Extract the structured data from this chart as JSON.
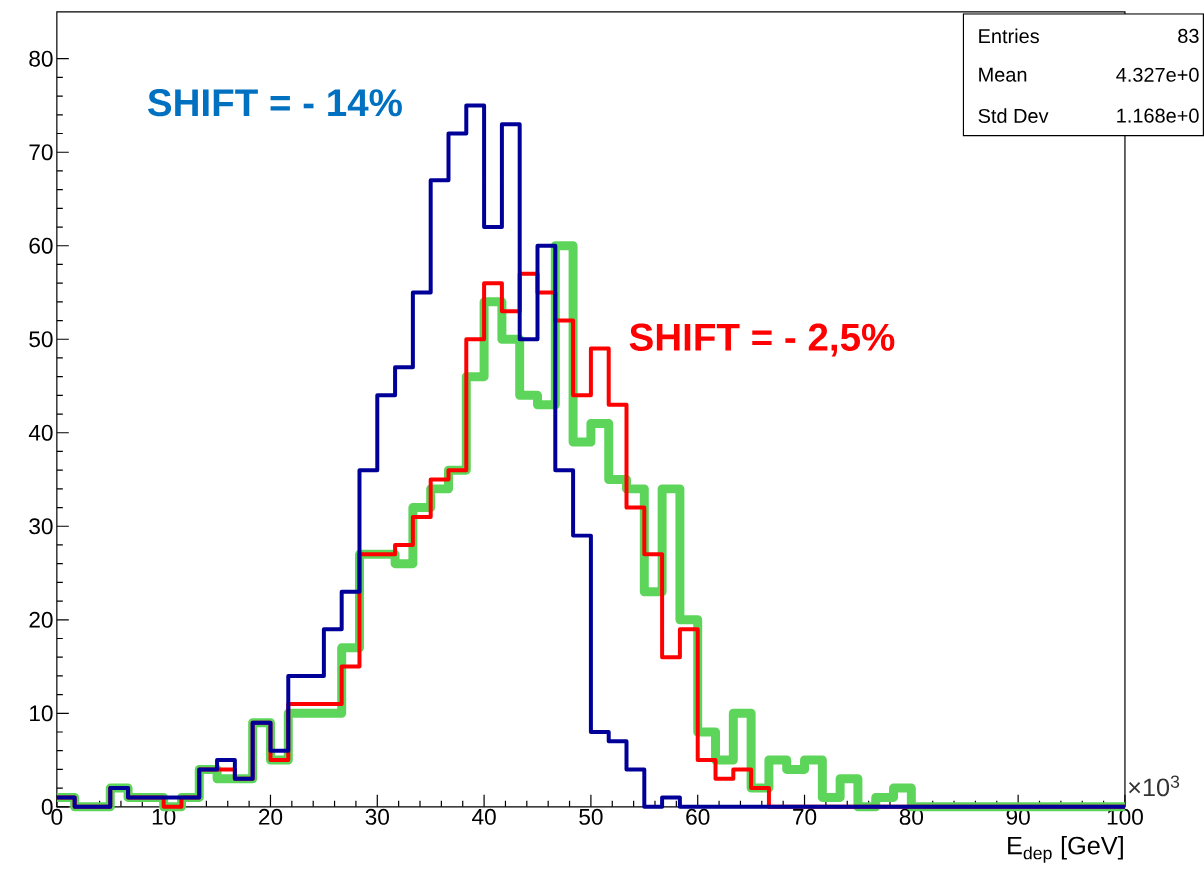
{
  "chart_data": {
    "type": "histogram",
    "xlabel": "E$_{dep}$ [GeV]",
    "bins": [
      0,
      1.667,
      3.333,
      5,
      6.667,
      8.333,
      10,
      11.667,
      13.333,
      15,
      16.667,
      18.333,
      20,
      21.667,
      23.333,
      25,
      26.667,
      28.333,
      30,
      31.667,
      33.333,
      35,
      36.667,
      38.333,
      40,
      41.667,
      43.333,
      45,
      46.667,
      48.333,
      50,
      51.667,
      53.333,
      55,
      56.667,
      58.333,
      60,
      61.667,
      63.333,
      65,
      66.667,
      68.333,
      70,
      71.667,
      73.333,
      75,
      76.667,
      78.333,
      80,
      81.667,
      83.333,
      85,
      86.667,
      88.333,
      90,
      91.667,
      93.333,
      95,
      96.667,
      98.333,
      100
    ],
    "series": [
      {
        "color": "#5dd55b",
        "values": [
          1,
          0,
          0,
          2,
          1,
          1,
          0,
          1,
          4,
          3,
          3,
          9,
          5,
          10,
          10,
          10,
          17,
          27,
          27,
          26,
          32,
          34,
          36,
          46,
          54,
          50,
          44,
          43,
          60,
          39,
          41,
          35,
          34,
          23,
          34,
          20,
          8,
          5,
          10,
          2,
          5,
          4,
          5,
          1,
          3,
          0,
          1,
          2,
          0,
          0,
          0,
          0,
          0,
          0,
          0,
          0,
          0,
          0,
          0,
          0
        ]
      },
      {
        "color": "#ff0000",
        "values": [
          1,
          0,
          0,
          2,
          1,
          1,
          0,
          1,
          4,
          4,
          3,
          9,
          5,
          11,
          11,
          11,
          15,
          27,
          27,
          28,
          31,
          35,
          36,
          50,
          56,
          53,
          57,
          55,
          52,
          44,
          49,
          43,
          32,
          27,
          16,
          19,
          5,
          3,
          4,
          2,
          0,
          0,
          0,
          0,
          0,
          0,
          0,
          0,
          0,
          0,
          0,
          0,
          0,
          0,
          0,
          0,
          0,
          0,
          0,
          0
        ]
      },
      {
        "color": "#000099",
        "values": [
          1,
          0,
          0,
          2,
          1,
          1,
          1,
          1,
          4,
          5,
          3,
          9,
          6,
          14,
          14,
          19,
          23,
          36,
          44,
          47,
          55,
          67,
          72,
          75,
          62,
          73,
          50,
          60,
          36,
          29,
          8,
          7,
          4,
          0,
          1,
          0,
          0,
          0,
          0,
          0,
          0,
          0,
          0,
          0,
          0,
          0,
          0,
          0,
          0,
          0,
          0,
          0,
          0,
          0,
          0,
          0,
          0,
          0,
          0,
          0
        ]
      }
    ],
    "xlim": [
      0,
      100
    ],
    "xticks": [
      0,
      10,
      20,
      30,
      40,
      50,
      60,
      70,
      80,
      90,
      100
    ],
    "ylim": [
      0,
      85
    ],
    "yticks": [
      0,
      10,
      20,
      30,
      40,
      50,
      60,
      70,
      80
    ],
    "annotations": [
      "SHIFT = - 14%",
      "SHIFT = - 2,5%",
      "×10$^{3}$",
      "Entries",
      "83",
      "Mean",
      "4.327e+0",
      "Std Dev",
      "1.168e+0"
    ]
  }
}
